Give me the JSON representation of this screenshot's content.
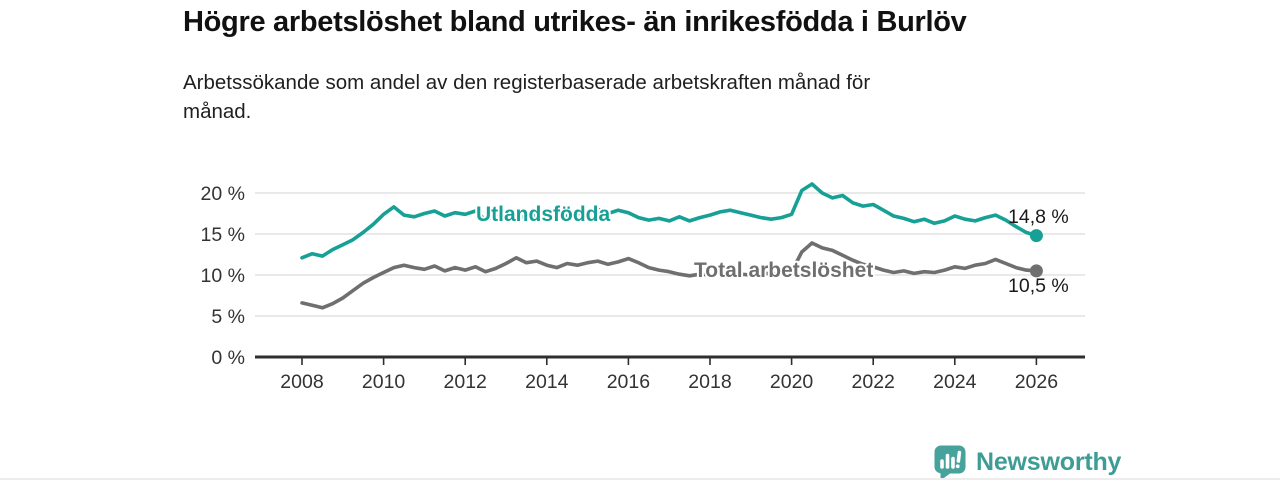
{
  "header": {
    "title": "Högre arbetslöshet bland utrikes- än inrikesfödda i Burlöv",
    "subtitle_line1": "Arbetssökande som andel av den registerbaserade arbetskraften månad för",
    "subtitle_line2": "månad."
  },
  "chart_data": {
    "type": "line",
    "x": [
      2008,
      2008.25,
      2008.5,
      2008.75,
      2009,
      2009.25,
      2009.5,
      2009.75,
      2010,
      2010.25,
      2010.5,
      2010.75,
      2011,
      2011.25,
      2011.5,
      2011.75,
      2012,
      2012.25,
      2012.5,
      2012.75,
      2013,
      2013.25,
      2013.5,
      2013.75,
      2014,
      2014.25,
      2014.5,
      2014.75,
      2015,
      2015.25,
      2015.5,
      2015.75,
      2016,
      2016.25,
      2016.5,
      2016.75,
      2017,
      2017.25,
      2017.5,
      2017.75,
      2018,
      2018.25,
      2018.5,
      2018.75,
      2019,
      2019.25,
      2019.5,
      2019.75,
      2020,
      2020.25,
      2020.5,
      2020.75,
      2021,
      2021.25,
      2021.5,
      2021.75,
      2022,
      2022.25,
      2022.5,
      2022.75,
      2023,
      2023.25,
      2023.5,
      2023.75,
      2024,
      2024.25,
      2024.5,
      2024.75,
      2025,
      2025.25,
      2025.5,
      2025.75,
      2026
    ],
    "series": [
      {
        "id": "utlandsfodda",
        "name": "Utlandsfödda",
        "color": "#17A095",
        "end_label": "14,8 %",
        "end_value": 14.8,
        "values": [
          12.1,
          12.6,
          12.3,
          13.1,
          13.7,
          14.3,
          15.2,
          16.2,
          17.4,
          18.3,
          17.3,
          17.1,
          17.5,
          17.8,
          17.2,
          17.6,
          17.4,
          17.8,
          16.7,
          17.2,
          17.0,
          17.5,
          16.8,
          17.3,
          17.2,
          17.7,
          17.1,
          17.5,
          17.4,
          18.0,
          17.5,
          17.9,
          17.6,
          17.0,
          16.7,
          16.9,
          16.6,
          17.1,
          16.6,
          17.0,
          17.3,
          17.7,
          17.9,
          17.6,
          17.3,
          17.0,
          16.8,
          17.0,
          17.4,
          20.3,
          21.1,
          20.0,
          19.4,
          19.7,
          18.8,
          18.4,
          18.6,
          17.9,
          17.2,
          16.9,
          16.5,
          16.8,
          16.3,
          16.6,
          17.2,
          16.8,
          16.6,
          17.0,
          17.3,
          16.7,
          15.9,
          15.2,
          14.8
        ]
      },
      {
        "id": "total",
        "name": "Total arbetslöshet",
        "color": "#6F6F6F",
        "end_label": "10,5 %",
        "end_value": 10.5,
        "values": [
          6.6,
          6.3,
          6.0,
          6.5,
          7.2,
          8.1,
          9.0,
          9.7,
          10.3,
          10.9,
          11.2,
          10.9,
          10.7,
          11.1,
          10.5,
          10.9,
          10.6,
          11.0,
          10.4,
          10.8,
          11.4,
          12.1,
          11.5,
          11.7,
          11.2,
          10.9,
          11.4,
          11.2,
          11.5,
          11.7,
          11.3,
          11.6,
          12.0,
          11.5,
          10.9,
          10.6,
          10.4,
          10.1,
          9.9,
          10.1,
          10.0,
          10.2,
          9.9,
          10.1,
          10.0,
          10.3,
          10.1,
          10.2,
          10.4,
          12.8,
          13.9,
          13.3,
          13.0,
          12.4,
          11.8,
          11.3,
          11.0,
          10.6,
          10.3,
          10.5,
          10.2,
          10.4,
          10.3,
          10.6,
          11.0,
          10.8,
          11.2,
          11.4,
          11.9,
          11.4,
          10.9,
          10.6,
          10.5
        ]
      }
    ],
    "y_axis": {
      "ticks": [
        {
          "value": 0,
          "label": "0 %"
        },
        {
          "value": 5,
          "label": "5 %"
        },
        {
          "value": 10,
          "label": "10 %"
        },
        {
          "value": 15,
          "label": "15 %"
        },
        {
          "value": 20,
          "label": "20 %"
        }
      ],
      "range": [
        0,
        22.8
      ],
      "grid": true
    },
    "x_axis": {
      "ticks": [
        2008,
        2010,
        2012,
        2014,
        2016,
        2018,
        2020,
        2022,
        2024,
        2026
      ],
      "range": [
        2006.85,
        2027.2
      ]
    }
  },
  "footer": {
    "brand": "Newsworthy"
  }
}
